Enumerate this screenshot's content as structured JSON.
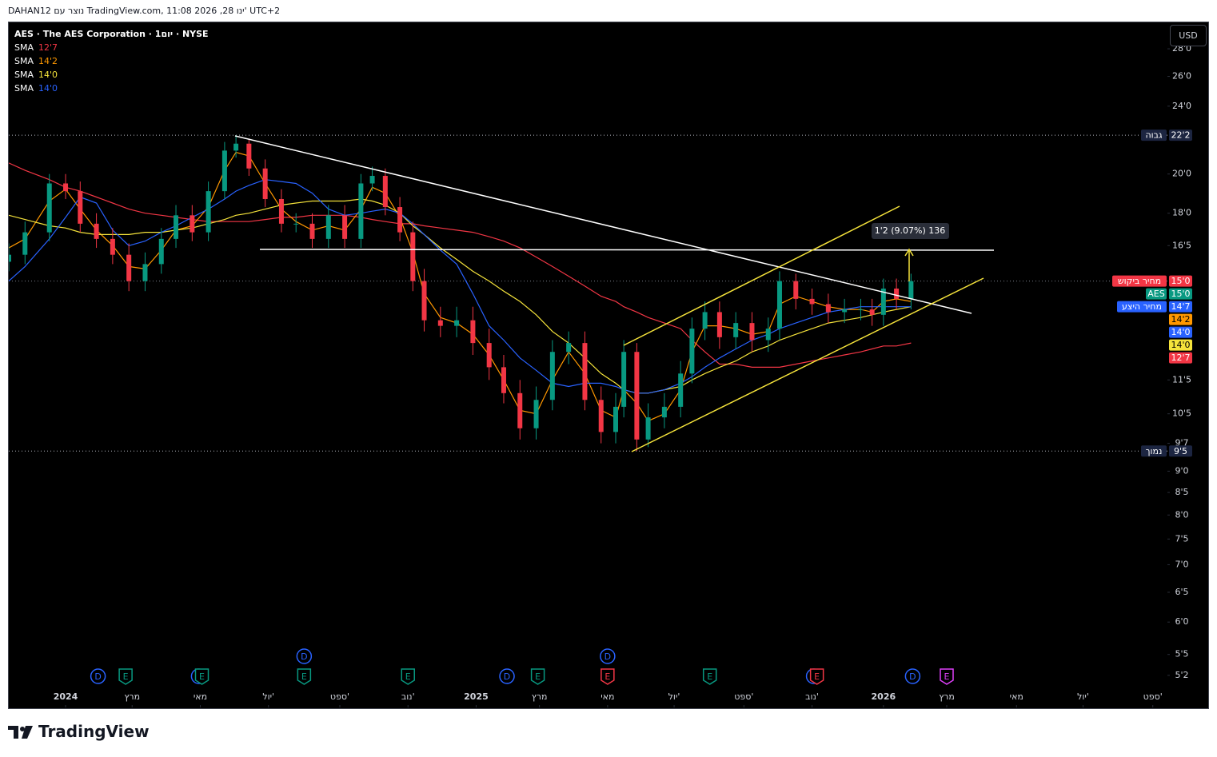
{
  "header": "DAHAN12 נוצר עם TradingView.com, 11:08 2026 ,28 ינו' UTC+2",
  "footer_brand": "TradingView",
  "chart_data": {
    "type": "candlestick",
    "title": "AES · The AES Corporation · 1יום · NYSE",
    "currency": "USD",
    "log_scale": true,
    "grid": false,
    "up_color": "#089981",
    "down_color": "#f23645",
    "xlim": [
      -35,
      679
    ],
    "ylim": [
      4.77,
      30.06
    ],
    "xticks": [
      {
        "value": 0,
        "label": "2024"
      },
      {
        "value": 41,
        "label": "מרץ"
      },
      {
        "value": 83,
        "label": "מאי"
      },
      {
        "value": 125,
        "label": "יול'"
      },
      {
        "value": 169,
        "label": "ספט'"
      },
      {
        "value": 211,
        "label": "נוב'"
      },
      {
        "value": 253,
        "label": "2025"
      },
      {
        "value": 292,
        "label": "מרץ"
      },
      {
        "value": 334,
        "label": "מאי"
      },
      {
        "value": 375,
        "label": "יול'"
      },
      {
        "value": 418,
        "label": "ספט'"
      },
      {
        "value": 460,
        "label": "נוב'"
      },
      {
        "value": 504,
        "label": "2026"
      },
      {
        "value": 543,
        "label": "מרץ"
      },
      {
        "value": 586,
        "label": "מאי"
      },
      {
        "value": 627,
        "label": "יול'"
      },
      {
        "value": 670,
        "label": "ספט'"
      }
    ],
    "yticks": [
      {
        "value": 28,
        "label": "28'0"
      },
      {
        "value": 26,
        "label": "26'0"
      },
      {
        "value": 24,
        "label": "24'0"
      },
      {
        "value": 20,
        "label": "20'0"
      },
      {
        "value": 18,
        "label": "18'0"
      },
      {
        "value": 16.5,
        "label": "16'5"
      },
      {
        "value": 11.5,
        "label": "11'5"
      },
      {
        "value": 10.5,
        "label": "10'5"
      },
      {
        "value": 9.7,
        "label": "9'7"
      },
      {
        "value": 9,
        "label": "9'0"
      },
      {
        "value": 8.5,
        "label": "8'5"
      },
      {
        "value": 8,
        "label": "8'0"
      },
      {
        "value": 7.5,
        "label": "7'5"
      },
      {
        "value": 7,
        "label": "7'0"
      },
      {
        "value": 6.5,
        "label": "6'5"
      },
      {
        "value": 6,
        "label": "6'0"
      },
      {
        "value": 5.5,
        "label": "5'5"
      },
      {
        "value": 5.2,
        "label": "5'2"
      }
    ],
    "x": [
      -35,
      -25,
      -10,
      0,
      9,
      19,
      29,
      39,
      49,
      59,
      68,
      78,
      88,
      98,
      105,
      113,
      123,
      133,
      142,
      152,
      162,
      172,
      182,
      189,
      197,
      206,
      214,
      221,
      231,
      241,
      251,
      261,
      270,
      280,
      290,
      300,
      310,
      320,
      330,
      339,
      344,
      352,
      359,
      369,
      379,
      386,
      394,
      403,
      413,
      423,
      433,
      440,
      450,
      460,
      470,
      480,
      490,
      497,
      504,
      512,
      521
    ],
    "candles": {
      "open": [
        15.8,
        16.1,
        17.1,
        19.5,
        19.1,
        17.5,
        16.8,
        16.1,
        15.0,
        15.7,
        16.8,
        17.9,
        17.1,
        19.1,
        21.3,
        21.7,
        20.3,
        18.7,
        17.5,
        17.5,
        16.8,
        17.9,
        16.8,
        19.5,
        19.9,
        18.3,
        17.1,
        15.0,
        13.5,
        13.3,
        13.5,
        12.7,
        11.9,
        11.1,
        10.1,
        10.9,
        12.4,
        12.7,
        10.9,
        10.0,
        10.7,
        12.4,
        9.8,
        10.4,
        10.7,
        11.7,
        13.2,
        13.8,
        12.9,
        13.4,
        12.8,
        13.2,
        15.0,
        14.3,
        14.1,
        13.8,
        13.9,
        13.9,
        13.7,
        14.7,
        14.3
      ],
      "high": [
        16.6,
        17.6,
        20.0,
        20.0,
        19.6,
        18.0,
        17.3,
        16.6,
        16.2,
        17.3,
        18.4,
        18.4,
        19.6,
        21.8,
        22.2,
        22.0,
        20.8,
        19.2,
        18.0,
        18.0,
        18.4,
        18.4,
        20.0,
        20.4,
        20.3,
        18.8,
        17.6,
        15.5,
        14.0,
        14.0,
        14.0,
        13.2,
        12.3,
        11.5,
        11.3,
        12.8,
        13.1,
        13.1,
        11.3,
        11.1,
        12.8,
        12.7,
        10.8,
        11.1,
        12.1,
        13.6,
        14.2,
        14.2,
        13.8,
        13.8,
        13.6,
        15.4,
        15.3,
        14.7,
        14.5,
        14.3,
        14.3,
        14.3,
        15.1,
        15.1,
        15.3
      ],
      "low": [
        15.4,
        15.7,
        16.7,
        18.7,
        17.1,
        16.4,
        15.7,
        14.6,
        14.6,
        15.3,
        16.4,
        16.7,
        16.7,
        18.7,
        20.9,
        19.9,
        18.3,
        17.1,
        17.1,
        16.4,
        16.4,
        16.4,
        16.4,
        19.1,
        17.9,
        16.7,
        14.6,
        13.1,
        12.9,
        12.9,
        12.3,
        11.5,
        10.8,
        9.8,
        9.8,
        10.6,
        12.0,
        10.6,
        9.7,
        9.7,
        10.4,
        9.5,
        9.6,
        10.1,
        10.4,
        11.4,
        12.8,
        12.5,
        12.5,
        12.4,
        12.4,
        12.8,
        13.9,
        13.7,
        13.4,
        13.4,
        13.5,
        13.3,
        13.3,
        13.9,
        13.9
      ],
      "close": [
        16.1,
        17.1,
        19.5,
        19.1,
        17.5,
        16.8,
        16.1,
        15.0,
        15.7,
        16.8,
        17.9,
        17.1,
        19.1,
        21.3,
        21.7,
        20.3,
        18.7,
        17.5,
        17.5,
        16.8,
        17.9,
        16.8,
        19.5,
        19.9,
        18.3,
        17.1,
        15.0,
        13.5,
        13.3,
        13.5,
        12.7,
        11.9,
        11.1,
        10.1,
        10.9,
        12.4,
        12.7,
        10.9,
        10.0,
        10.7,
        12.4,
        9.8,
        10.4,
        10.7,
        11.7,
        13.2,
        13.8,
        12.9,
        13.4,
        12.8,
        13.2,
        15.0,
        14.3,
        14.1,
        13.8,
        13.9,
        13.9,
        13.7,
        14.7,
        14.3,
        15.0
      ]
    },
    "series": [
      {
        "name": "SMA",
        "color": "#f23645",
        "last_label": "12'7",
        "values": [
          20.6,
          20.2,
          19.7,
          19.3,
          19.1,
          18.8,
          18.5,
          18.2,
          18.0,
          17.9,
          17.8,
          17.7,
          17.6,
          17.6,
          17.6,
          17.6,
          17.7,
          17.8,
          17.8,
          17.9,
          17.9,
          17.9,
          17.8,
          17.7,
          17.6,
          17.5,
          17.5,
          17.4,
          17.3,
          17.2,
          17.1,
          16.9,
          16.7,
          16.4,
          16.0,
          15.6,
          15.2,
          14.8,
          14.4,
          14.2,
          14.0,
          13.8,
          13.6,
          13.4,
          13.2,
          12.8,
          12.4,
          12.0,
          12.0,
          11.9,
          11.9,
          11.9,
          12.0,
          12.1,
          12.2,
          12.3,
          12.4,
          12.5,
          12.6,
          12.6,
          12.7
        ]
      },
      {
        "name": "SMA",
        "color": "#ff9800",
        "last_label": "14'2",
        "values": [
          16.4,
          16.8,
          18.6,
          19.2,
          18.2,
          17.2,
          16.5,
          15.6,
          15.5,
          16.3,
          17.2,
          17.4,
          18.3,
          20.2,
          21.2,
          21.0,
          19.5,
          18.2,
          17.6,
          17.2,
          17.4,
          17.2,
          18.2,
          19.3,
          19.0,
          17.8,
          16.2,
          14.5,
          13.6,
          13.4,
          13.0,
          12.3,
          11.5,
          10.6,
          10.5,
          11.5,
          12.4,
          11.7,
          10.6,
          10.4,
          11.2,
          10.8,
          10.3,
          10.5,
          11.2,
          12.4,
          13.3,
          13.3,
          13.2,
          13.0,
          13.1,
          14.1,
          14.4,
          14.2,
          14.0,
          13.9,
          13.9,
          13.8,
          14.2,
          14.3,
          14.2
        ]
      },
      {
        "name": "SMA",
        "color": "#f5e33b",
        "last_label": "14'0",
        "values": [
          17.9,
          17.7,
          17.4,
          17.3,
          17.1,
          17.0,
          17.0,
          17.0,
          17.1,
          17.1,
          17.2,
          17.3,
          17.5,
          17.7,
          17.9,
          18.0,
          18.2,
          18.4,
          18.5,
          18.6,
          18.6,
          18.6,
          18.7,
          18.6,
          18.4,
          18.0,
          17.4,
          17.0,
          16.4,
          15.9,
          15.4,
          15.0,
          14.6,
          14.2,
          13.7,
          13.1,
          12.7,
          12.2,
          11.7,
          11.4,
          11.2,
          11.1,
          11.1,
          11.2,
          11.3,
          11.5,
          11.7,
          11.9,
          12.1,
          12.4,
          12.6,
          12.8,
          13.0,
          13.2,
          13.4,
          13.5,
          13.6,
          13.7,
          13.8,
          13.9,
          14.0
        ]
      },
      {
        "name": "SMA",
        "color": "#2962ff",
        "last_label": "14'0",
        "values": [
          15.0,
          15.6,
          16.8,
          17.8,
          18.8,
          18.5,
          17.2,
          16.5,
          16.7,
          17.1,
          17.4,
          17.8,
          18.2,
          18.7,
          19.1,
          19.4,
          19.7,
          19.6,
          19.5,
          19.0,
          18.2,
          17.9,
          18.0,
          18.1,
          18.2,
          18.0,
          17.5,
          17.0,
          16.3,
          15.7,
          14.5,
          13.3,
          12.8,
          12.2,
          11.8,
          11.4,
          11.3,
          11.4,
          11.4,
          11.3,
          11.2,
          11.1,
          11.1,
          11.2,
          11.4,
          11.6,
          11.9,
          12.2,
          12.5,
          12.8,
          13.0,
          13.2,
          13.4,
          13.6,
          13.8,
          13.9,
          14.0,
          14.0,
          14.0,
          14.0,
          14.0
        ]
      }
    ],
    "price_labels": [
      {
        "name": "גבוה",
        "value": 22.2,
        "label": "22'2",
        "color": "#1c2541"
      },
      {
        "name": "מחיר ביקוש",
        "value": 15.0,
        "label": "15'0",
        "color": "#f23645"
      },
      {
        "name": "AES",
        "value": 15.0,
        "label": "15'0",
        "color": "#089981"
      },
      {
        "name": "מחיר היצע",
        "value": 14.7,
        "label": "14'7",
        "color": "#2962ff"
      },
      {
        "value": 14.2,
        "label": "14'2",
        "color": "#ff9800"
      },
      {
        "value": 14.0,
        "label": "14'0",
        "color": "#2962ff"
      },
      {
        "value": 14.0,
        "label": "14'0",
        "color": "#f5e33b"
      },
      {
        "value": 12.7,
        "label": "12'7",
        "color": "#f23645"
      },
      {
        "name": "נמוך",
        "value": 9.5,
        "label": "9'5",
        "color": "#1c2541"
      }
    ],
    "annotations": [
      "1'2 (9.07%) 136"
    ],
    "events": [
      {
        "x": 20,
        "label": "D",
        "color": "#2962ff"
      },
      {
        "x": 37,
        "label": "E",
        "color": "#089981"
      },
      {
        "x": 82,
        "label": "D",
        "color": "#2962ff"
      },
      {
        "x": 84,
        "label": "E",
        "color": "#089981"
      },
      {
        "x": 147,
        "label": "E",
        "color": "#089981"
      },
      {
        "x": 147,
        "label": "D",
        "color": "#2962ff"
      },
      {
        "x": 211,
        "label": "E",
        "color": "#089981"
      },
      {
        "x": 272,
        "label": "D",
        "color": "#2962ff"
      },
      {
        "x": 291,
        "label": "E",
        "color": "#089981"
      },
      {
        "x": 334,
        "label": "E",
        "color": "#f23645"
      },
      {
        "x": 334,
        "label": "D",
        "color": "#2962ff"
      },
      {
        "x": 397,
        "label": "E",
        "color": "#089981"
      },
      {
        "x": 461,
        "label": "D",
        "color": "#2962ff"
      },
      {
        "x": 463,
        "label": "E",
        "color": "#f23645"
      },
      {
        "x": 522,
        "label": "D",
        "color": "#2962ff"
      },
      {
        "x": 543,
        "label": "E",
        "color": "#e040fb"
      }
    ]
  }
}
